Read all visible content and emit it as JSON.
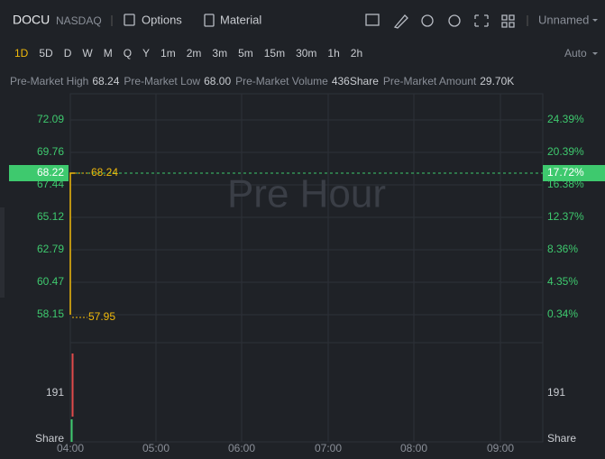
{
  "header": {
    "symbol": "DOCU",
    "exchange": "NASDAQ",
    "buttons": [
      "Options",
      "Material"
    ],
    "layout_name": "Unnamed"
  },
  "timeframes": {
    "items": [
      "1D",
      "5D",
      "D",
      "W",
      "M",
      "Q",
      "Y",
      "1m",
      "2m",
      "3m",
      "5m",
      "15m",
      "30m",
      "1h",
      "2h"
    ],
    "scale": "Auto"
  },
  "info": [
    {
      "label": "Pre-Market High",
      "value": "68.24"
    },
    {
      "label": "Pre-Market Low",
      "value": "68.00"
    },
    {
      "label": "Pre-Market Volume",
      "value": "436Share"
    },
    {
      "label": "Pre-Market Amount",
      "value": "29.70K"
    }
  ],
  "chart": {
    "watermark": "Pre Hour",
    "price_axis": [
      "72.09",
      "69.76",
      "67.44",
      "65.12",
      "62.79",
      "60.47",
      "58.15"
    ],
    "percent_axis": [
      "24.39%",
      "20.39%",
      "16.38%",
      "12.37%",
      "8.36%",
      "4.35%",
      "0.34%"
    ],
    "current_price": "68.22",
    "current_percent": "17.72%",
    "high_label": "68.24",
    "low_label": "57.95",
    "volume_axis": [
      "191",
      "Share"
    ],
    "time_axis": [
      "04:00",
      "05:00",
      "06:00",
      "07:00",
      "08:00",
      "09:00"
    ]
  }
}
